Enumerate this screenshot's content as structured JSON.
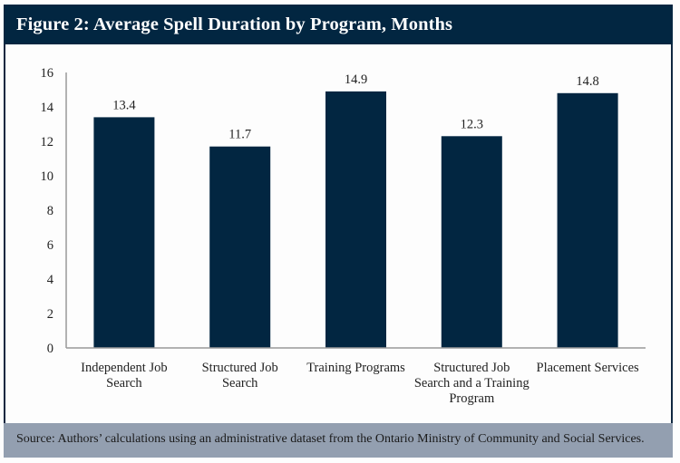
{
  "header": {
    "title": "Figure 2: Average Spell Duration by Program, Months"
  },
  "footer": {
    "source": "Source: Authors’ calculations using an administrative dataset from the Ontario Ministry of Community and Social Services."
  },
  "colors": {
    "bar": "#022641",
    "header_bg": "#022641",
    "footer_bg": "#939fb0",
    "axis": "#9a9a9a"
  },
  "chart_data": {
    "type": "bar",
    "title": "Figure 2: Average Spell Duration by Program, Months",
    "xlabel": "",
    "ylabel": "",
    "ylim": [
      0,
      16
    ],
    "yticks": [
      0,
      2,
      4,
      6,
      8,
      10,
      12,
      14,
      16
    ],
    "grid": false,
    "legend": "none",
    "categories": [
      [
        "Independent Job",
        "Search"
      ],
      [
        "Structured Job",
        "Search"
      ],
      [
        "Training Programs"
      ],
      [
        "Structured Job",
        "Search and a Training",
        "Program"
      ],
      [
        "Placement Services"
      ]
    ],
    "values": [
      13.4,
      11.7,
      14.9,
      12.3,
      14.8
    ],
    "data_labels": [
      "13.4",
      "11.7",
      "14.9",
      "12.3",
      "14.8"
    ]
  }
}
